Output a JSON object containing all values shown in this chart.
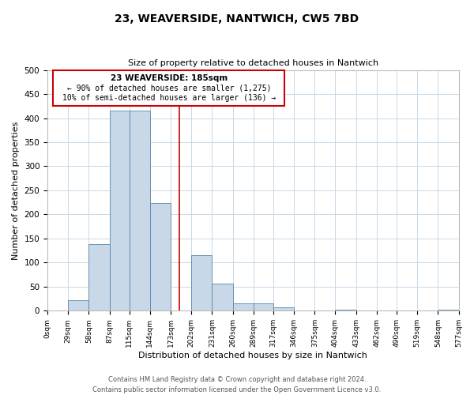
{
  "title": "23, WEAVERSIDE, NANTWICH, CW5 7BD",
  "subtitle": "Size of property relative to detached houses in Nantwich",
  "xlabel": "Distribution of detached houses by size in Nantwich",
  "ylabel": "Number of detached properties",
  "bin_edges": [
    0,
    29,
    58,
    87,
    115,
    144,
    173,
    202,
    231,
    260,
    289,
    317,
    346,
    375,
    404,
    433,
    462,
    490,
    519,
    548,
    577
  ],
  "bin_labels": [
    "0sqm",
    "29sqm",
    "58sqm",
    "87sqm",
    "115sqm",
    "144sqm",
    "173sqm",
    "202sqm",
    "231sqm",
    "260sqm",
    "289sqm",
    "317sqm",
    "346sqm",
    "375sqm",
    "404sqm",
    "433sqm",
    "462sqm",
    "490sqm",
    "519sqm",
    "548sqm",
    "577sqm"
  ],
  "counts": [
    0,
    22,
    139,
    415,
    415,
    224,
    0,
    115,
    57,
    15,
    15,
    7,
    0,
    0,
    3,
    0,
    0,
    0,
    0,
    2
  ],
  "bar_facecolor": "#c8d8e8",
  "bar_edgecolor": "#5588aa",
  "property_line_x": 185,
  "property_line_color": "#cc0000",
  "annotation_text_line1": "23 WEAVERSIDE: 185sqm",
  "annotation_text_line2": "← 90% of detached houses are smaller (1,275)",
  "annotation_text_line3": "10% of semi-detached houses are larger (136) →",
  "annotation_box_color": "#cc0000",
  "ylim": [
    0,
    500
  ],
  "yticks": [
    0,
    50,
    100,
    150,
    200,
    250,
    300,
    350,
    400,
    450,
    500
  ],
  "footer_line1": "Contains HM Land Registry data © Crown copyright and database right 2024.",
  "footer_line2": "Contains public sector information licensed under the Open Government Licence v3.0.",
  "background_color": "#ffffff",
  "grid_color": "#c8d8e8"
}
